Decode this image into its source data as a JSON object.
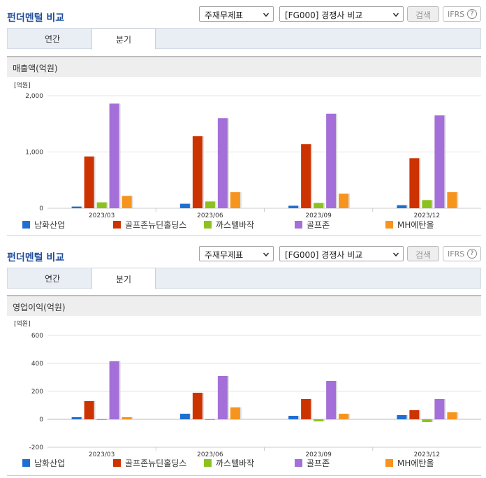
{
  "panels": [
    {
      "title": "펀더멘털 비교",
      "statement_select": "주재무제표",
      "peer_select": "[FG000] 경쟁사 비교",
      "search_label": "검색",
      "ifrs_label": "IFRS",
      "help_glyph": "?",
      "tabs": [
        {
          "label": "연간",
          "active": false
        },
        {
          "label": "분기",
          "active": true
        }
      ],
      "chart_title": "매출액(억원)"
    },
    {
      "title": "펀더멘털 비교",
      "statement_select": "주재무제표",
      "peer_select": "[FG000] 경쟁사 비교",
      "search_label": "검색",
      "ifrs_label": "IFRS",
      "help_glyph": "?",
      "tabs": [
        {
          "label": "연간",
          "active": false
        },
        {
          "label": "분기",
          "active": true
        }
      ],
      "chart_title": "영업이익(억원)"
    }
  ],
  "legend": [
    {
      "name": "남화산업",
      "color": "#1f6fd1"
    },
    {
      "name": "골프존뉴딘홀딩스",
      "color": "#cc3300"
    },
    {
      "name": "까스텔바작",
      "color": "#8cc21f"
    },
    {
      "name": "골프존",
      "color": "#a46fd8"
    },
    {
      "name": "MH에탄올",
      "color": "#f7941d"
    }
  ],
  "chart_data": [
    {
      "type": "bar",
      "title": "매출액(억원)",
      "unit_label": "[억원]",
      "categories": [
        "2023/03",
        "2023/06",
        "2023/09",
        "2023/12"
      ],
      "ylim": [
        0,
        2000
      ],
      "yticks": [
        0,
        1000,
        2000
      ],
      "ytick_labels": [
        "0",
        "1,000",
        "2,000"
      ],
      "grid": true,
      "series": [
        {
          "name": "남화산업",
          "values": [
            30,
            80,
            45,
            55
          ]
        },
        {
          "name": "골프존뉴딘홀딩스",
          "values": [
            920,
            1280,
            1140,
            890
          ]
        },
        {
          "name": "까스텔바작",
          "values": [
            105,
            120,
            95,
            145
          ]
        },
        {
          "name": "골프존",
          "values": [
            1860,
            1600,
            1680,
            1650
          ]
        },
        {
          "name": "MH에탄올",
          "values": [
            220,
            285,
            260,
            285
          ]
        }
      ]
    },
    {
      "type": "bar",
      "title": "영업이익(억원)",
      "unit_label": "[억원]",
      "categories": [
        "2023/03",
        "2023/06",
        "2023/09",
        "2023/12"
      ],
      "ylim": [
        -200,
        600
      ],
      "yticks": [
        -200,
        0,
        200,
        400,
        600
      ],
      "ytick_labels": [
        "-200",
        "0",
        "200",
        "400",
        "600"
      ],
      "grid": true,
      "series": [
        {
          "name": "남화산업",
          "values": [
            15,
            40,
            25,
            30
          ]
        },
        {
          "name": "골프존뉴딘홀딩스",
          "values": [
            130,
            190,
            145,
            65
          ]
        },
        {
          "name": "까스텔바작",
          "values": [
            -5,
            -5,
            -15,
            -20
          ]
        },
        {
          "name": "골프존",
          "values": [
            415,
            310,
            275,
            145
          ]
        },
        {
          "name": "MH에탄올",
          "values": [
            15,
            85,
            40,
            50
          ]
        }
      ]
    }
  ]
}
